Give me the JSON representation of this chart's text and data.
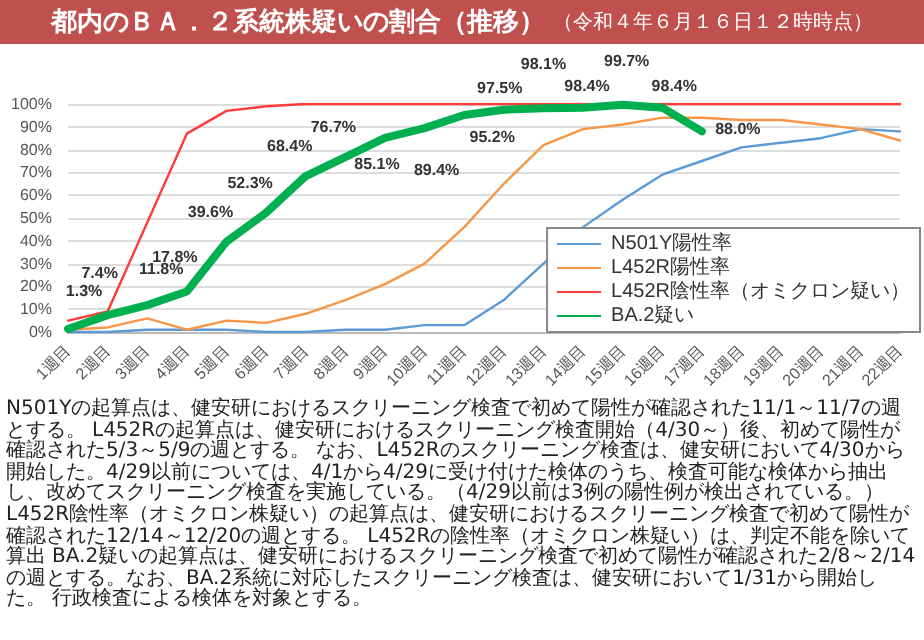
{
  "chart_data": {
    "type": "line",
    "title": "都内のＢＡ．２系統株疑いの割合（推移）",
    "subtitle": "（令和４年６月１６日１２時時点）",
    "categories": [
      "1週目",
      "2週目",
      "3週目",
      "4週目",
      "5週目",
      "6週目",
      "7週目",
      "8週目",
      "9週目",
      "10週目",
      "11週目",
      "12週目",
      "13週目",
      "14週目",
      "15週目",
      "16週目",
      "17週目",
      "18週目",
      "19週目",
      "20週目",
      "21週目",
      "22週目"
    ],
    "series": [
      {
        "name": "N501Y陽性率",
        "color": "#5b9bd5",
        "values": [
          0,
          0,
          1,
          1,
          1,
          0,
          0,
          1,
          1,
          3,
          3,
          14,
          30,
          46,
          58,
          69,
          75,
          81,
          83,
          85,
          89,
          88
        ]
      },
      {
        "name": "L452R陽性率",
        "color": "#f79646",
        "values": [
          1,
          2,
          6,
          1,
          5,
          4,
          8,
          14,
          21,
          30,
          46,
          65,
          82,
          89,
          91,
          94,
          94,
          93,
          93,
          91,
          89,
          84
        ]
      },
      {
        "name": "L452R陰性率（オミクロン疑い）",
        "color": "#ff3b3b",
        "values": [
          5,
          9,
          48,
          87,
          97,
          99,
          100,
          100,
          100,
          100,
          100,
          100,
          100,
          100,
          100,
          100,
          100,
          100,
          100,
          100,
          100,
          100
        ]
      },
      {
        "name": "BA.2疑い",
        "color": "#00b050",
        "values": [
          1.3,
          7.4,
          11.8,
          17.8,
          39.6,
          52.3,
          68.4,
          76.7,
          85.1,
          89.4,
          95.2,
          97.5,
          98.1,
          98.4,
          99.7,
          98.4,
          88.0,
          null,
          null,
          null,
          null,
          null
        ],
        "value_labels": [
          "1.3%",
          "7.4%",
          "11.8%",
          "17.8%",
          "39.6%",
          "52.3%",
          "68.4%",
          "76.7%",
          "85.1%",
          "89.4%",
          "95.2%",
          "97.5%",
          "98.1%",
          "98.4%",
          "99.7%",
          "98.4%",
          "88.0%",
          null,
          null,
          null,
          null,
          null
        ]
      }
    ],
    "ylim": [
      0,
      100
    ],
    "yticks": [
      {
        "value": 0,
        "label": "0%"
      },
      {
        "value": 10,
        "label": "10%"
      },
      {
        "value": 20,
        "label": "20%"
      },
      {
        "value": 30,
        "label": "30%"
      },
      {
        "value": 40,
        "label": "40%"
      },
      {
        "value": 50,
        "label": "50%"
      },
      {
        "value": 60,
        "label": "60%"
      },
      {
        "value": 70,
        "label": "70%"
      },
      {
        "value": 80,
        "label": "80%"
      },
      {
        "value": 90,
        "label": "90%"
      },
      {
        "value": 100,
        "label": "100%"
      }
    ],
    "grid": "y",
    "legend": "bottom right",
    "marker": "none",
    "annotations": [
      "N501Yの起算点は、健安研におけるスクリーニング検査で初めて陽性が確認された11/1～11/7の週とする。",
      "L452Rの起算点は、健安研におけるスクリーニング検査開始（4/30～）後、初めて陽性が確認された5/3～5/9の週とする。",
      "なお、L452Rのスクリーニング検査は、健安研において4/30から開始した。4/29以前については、4/1から4/29に受け付けた検体のうち、検査可能な検体から抽出し、改めてスクリーニング検査を実施している。（4/29以前は3例の陽性例が検出されている。）",
      "L452R陰性率（オミクロン株疑い）の起算点は、健安研におけるスクリーニング検査で初めて陽性が確認された12/14～12/20の週とする。",
      "L452Rの陰性率（オミクロン株疑い）は、判定不能を除いて算出",
      "BA.2疑いの起算点は、健安研におけるスクリーニング検査で初めて陽性が確認された2/8～2/14の週とする。なお、BA.2系統に対応したスクリーニング検査は、健安研において1/31から開始した。",
      "行政検査による検体を対象とする。"
    ]
  }
}
